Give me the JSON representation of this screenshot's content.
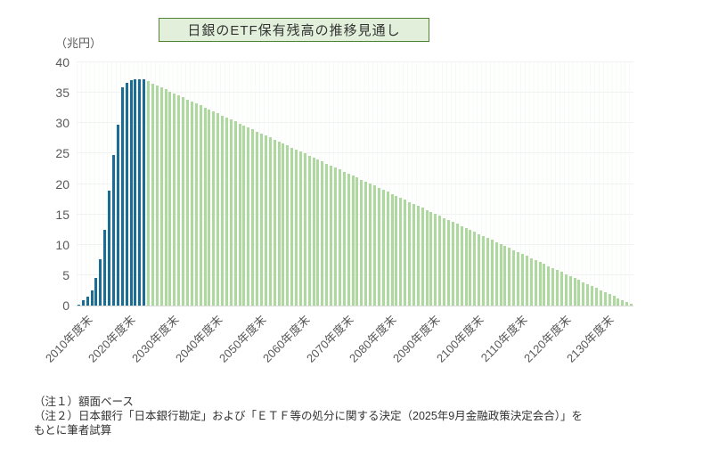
{
  "title_box": {
    "label": "日銀のETF保有残高の推移見通し"
  },
  "y_axis": {
    "unit": "（兆円）"
  },
  "notes": {
    "lines": [
      "（注１）額面ベース",
      "（注２）日本銀行「日本銀行勘定」および「ＥＴＦ等の処分に関する決定（2025年9月金融政策決定会合）」を",
      "もとに筆者試算"
    ]
  },
  "colors": {
    "actual_bar": "#1b6d96",
    "projection_bar": "#aed8a0",
    "title_box_fill": "#e2efda",
    "title_box_border": "#548235",
    "axis_text": "#595959",
    "axis_line": "#d9d9d9",
    "gridline": "#f2f2f2"
  },
  "chart_data": {
    "type": "bar",
    "title": "日銀のETF保有残高の推移見通し",
    "ylabel": "（兆円）",
    "xlabel": "",
    "ylim": [
      0,
      40
    ],
    "y_ticks": [
      0,
      5,
      10,
      15,
      20,
      25,
      30,
      35,
      40
    ],
    "grid": "horizontal every 5, no legend",
    "x_tick_labels": [
      "2010年度末",
      "2020年度末",
      "2030年度末",
      "2040年度末",
      "2050年度末",
      "2060年度末",
      "2070年度末",
      "2080年度末",
      "2090年度末",
      "2100年度末",
      "2110年度末",
      "2120年度末",
      "2130年度末"
    ],
    "x_tick_step_years": 10,
    "series": [
      {
        "name": "actual",
        "color": "#1b6d96",
        "start_year": 2010,
        "end_year": 2025,
        "values": [
          0.2,
          0.9,
          1.5,
          2.5,
          4.5,
          7.6,
          12.4,
          18.9,
          24.8,
          29.7,
          35.9,
          36.6,
          37.0,
          37.2,
          37.2,
          37.2
        ]
      },
      {
        "name": "projection",
        "color": "#aed8a0",
        "start_year": 2026,
        "end_year": 2137,
        "annual_decline": 0.33,
        "values": [
          36.87,
          36.54,
          36.21,
          35.88,
          35.55,
          35.22,
          34.89,
          34.56,
          34.23,
          33.9,
          33.57,
          33.24,
          32.91,
          32.58,
          32.25,
          31.92,
          31.59,
          31.26,
          30.93,
          30.6,
          30.27,
          29.94,
          29.61,
          29.28,
          28.95,
          28.62,
          28.29,
          27.96,
          27.63,
          27.3,
          26.97,
          26.64,
          26.31,
          25.98,
          25.65,
          25.32,
          24.99,
          24.66,
          24.33,
          24.0,
          23.67,
          23.34,
          23.01,
          22.68,
          22.35,
          22.02,
          21.69,
          21.36,
          21.03,
          20.7,
          20.37,
          20.04,
          19.71,
          19.38,
          19.05,
          18.72,
          18.39,
          18.06,
          17.73,
          17.4,
          17.07,
          16.74,
          16.41,
          16.08,
          15.75,
          15.42,
          15.09,
          14.76,
          14.43,
          14.1,
          13.77,
          13.44,
          13.11,
          12.78,
          12.45,
          12.12,
          11.79,
          11.46,
          11.13,
          10.8,
          10.47,
          10.14,
          9.81,
          9.48,
          9.15,
          8.82,
          8.49,
          8.16,
          7.83,
          7.5,
          7.17,
          6.84,
          6.51,
          6.18,
          5.85,
          5.52,
          5.19,
          4.86,
          4.53,
          4.2,
          3.87,
          3.54,
          3.21,
          2.88,
          2.55,
          2.22,
          1.89,
          1.56,
          1.23,
          0.9,
          0.57,
          0.24
        ]
      }
    ]
  }
}
